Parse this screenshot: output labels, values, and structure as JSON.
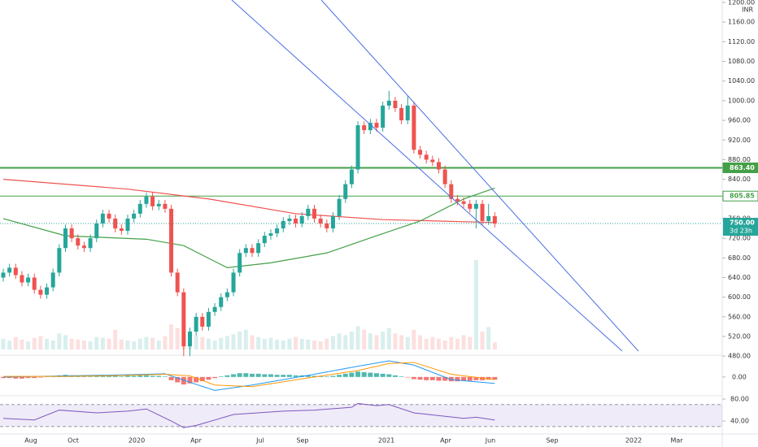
{
  "chart_data": {
    "type": "candlestick",
    "currency": "INR",
    "open": [
      640,
      650,
      660,
      645,
      630,
      640,
      615,
      605,
      620,
      650,
      700,
      740,
      720,
      705,
      700,
      720,
      750,
      770,
      760,
      740,
      735,
      760,
      770,
      790,
      805,
      785,
      790,
      780,
      650,
      610,
      500,
      530,
      560,
      540,
      570,
      580,
      600,
      610,
      650,
      690,
      700,
      690,
      710,
      725,
      730,
      740,
      755,
      760,
      750,
      765,
      780,
      760,
      750,
      740,
      765,
      800,
      830,
      860,
      950,
      940,
      955,
      945,
      990,
      1000,
      985,
      960,
      990,
      900,
      890,
      880,
      875,
      860,
      830,
      800,
      795,
      790,
      780,
      790,
      755,
      765
    ],
    "high": [
      658,
      668,
      668,
      653,
      648,
      648,
      623,
      628,
      658,
      708,
      748,
      748,
      728,
      713,
      728,
      758,
      778,
      778,
      768,
      748,
      768,
      778,
      798,
      813,
      813,
      798,
      798,
      788,
      658,
      618,
      538,
      568,
      568,
      578,
      588,
      608,
      618,
      658,
      698,
      708,
      708,
      718,
      733,
      738,
      748,
      763,
      768,
      768,
      773,
      788,
      788,
      768,
      758,
      773,
      808,
      838,
      868,
      958,
      958,
      963,
      963,
      998,
      1020,
      1008,
      993,
      1010,
      998,
      908,
      898,
      888,
      883,
      868,
      838,
      808,
      803,
      798,
      798,
      798,
      790,
      773
    ],
    "low": [
      632,
      642,
      637,
      622,
      622,
      607,
      597,
      597,
      612,
      642,
      692,
      712,
      697,
      692,
      692,
      712,
      742,
      752,
      732,
      727,
      727,
      752,
      762,
      782,
      777,
      777,
      772,
      642,
      602,
      480,
      480,
      522,
      532,
      532,
      562,
      572,
      592,
      602,
      642,
      682,
      682,
      682,
      702,
      717,
      722,
      732,
      747,
      742,
      742,
      757,
      752,
      742,
      732,
      732,
      757,
      792,
      822,
      852,
      932,
      932,
      937,
      937,
      982,
      977,
      952,
      952,
      892,
      882,
      872,
      867,
      852,
      822,
      792,
      787,
      782,
      772,
      740,
      747,
      747,
      742
    ],
    "close": [
      650,
      660,
      645,
      630,
      640,
      615,
      605,
      620,
      650,
      700,
      740,
      720,
      705,
      700,
      720,
      750,
      770,
      760,
      740,
      735,
      760,
      770,
      790,
      805,
      785,
      790,
      780,
      650,
      610,
      500,
      530,
      560,
      540,
      570,
      580,
      600,
      610,
      650,
      690,
      700,
      690,
      710,
      725,
      730,
      740,
      755,
      760,
      750,
      765,
      780,
      760,
      750,
      740,
      765,
      800,
      830,
      860,
      950,
      940,
      955,
      945,
      990,
      1000,
      985,
      960,
      990,
      900,
      890,
      880,
      875,
      860,
      830,
      800,
      795,
      790,
      780,
      790,
      755,
      765,
      750
    ],
    "volume": [
      12,
      10,
      14,
      11,
      9,
      13,
      15,
      12,
      10,
      18,
      16,
      12,
      11,
      10,
      9,
      14,
      13,
      12,
      22,
      11,
      10,
      9,
      12,
      14,
      13,
      10,
      15,
      28,
      24,
      20,
      18,
      16,
      14,
      12,
      10,
      13,
      15,
      17,
      20,
      22,
      16,
      14,
      12,
      13,
      11,
      10,
      12,
      14,
      12,
      11,
      10,
      9,
      12,
      15,
      18,
      16,
      20,
      26,
      22,
      18,
      16,
      20,
      24,
      18,
      16,
      14,
      22,
      16,
      12,
      14,
      12,
      10,
      14,
      12,
      16,
      14,
      100,
      20,
      25,
      8
    ],
    "ylim": [
      477,
      1205
    ],
    "yticks": [
      {
        "value": 1200,
        "label": "1200.00"
      },
      {
        "value": 1160,
        "label": "1160.00"
      },
      {
        "value": 1120,
        "label": "1120.00"
      },
      {
        "value": 1080,
        "label": "1080.00"
      },
      {
        "value": 1040,
        "label": "1040.00"
      },
      {
        "value": 1000,
        "label": "1000.00"
      },
      {
        "value": 960,
        "label": "960.00"
      },
      {
        "value": 920,
        "label": "920.00"
      },
      {
        "value": 880,
        "label": "880.00"
      },
      {
        "value": 840,
        "label": "840.00"
      },
      {
        "value": 800,
        "label": "800.00"
      },
      {
        "value": 760,
        "label": "760.00"
      },
      {
        "value": 720,
        "label": "720.00"
      },
      {
        "value": 680,
        "label": "680.00"
      },
      {
        "value": 640,
        "label": "640.00"
      },
      {
        "value": 600,
        "label": "600.00"
      },
      {
        "value": 560,
        "label": "560.00"
      },
      {
        "value": 520,
        "label": "520.00"
      },
      {
        "value": 480,
        "label": "480.00"
      }
    ],
    "xaxis_labels": [
      "Aug",
      "Oct",
      "2020",
      "Apr",
      "Jul",
      "Sep",
      "2021",
      "Apr",
      "Jun",
      "Sep",
      "2022",
      "Mar"
    ],
    "ma_slow": {
      "color": "#ef5350",
      "x": [
        0,
        20,
        33,
        47,
        61,
        79
      ],
      "values": [
        840,
        820,
        800,
        770,
        758,
        752
      ]
    },
    "ma_fast": {
      "color": "#43a047",
      "x": [
        0,
        10,
        23,
        29,
        36,
        43,
        52,
        60,
        67,
        74,
        79
      ],
      "values": [
        760,
        725,
        718,
        705,
        660,
        670,
        690,
        725,
        755,
        800,
        822
      ]
    },
    "levels": [
      {
        "value": 863.4,
        "label": "863.40",
        "color": "#43a047"
      },
      {
        "value": 805.85,
        "label": "805.85",
        "color": "#43a047"
      }
    ],
    "last_price": {
      "value": 750,
      "label": "750.00",
      "countdown": "3d 23h"
    },
    "macd": {
      "ylim": [
        -32,
        36
      ],
      "yticks": [
        {
          "value": 0,
          "label": "0.00"
        }
      ],
      "hist": [
        -2,
        -2,
        -3,
        -3,
        -2,
        -2,
        -1,
        1,
        2,
        3,
        4,
        3,
        2,
        1,
        1,
        2,
        3,
        3,
        2,
        1,
        2,
        2,
        3,
        3,
        2,
        2,
        1,
        -6,
        -10,
        -14,
        -12,
        -10,
        -8,
        -5,
        -2,
        1,
        3,
        5,
        7,
        7,
        6,
        6,
        5,
        5,
        4,
        4,
        4,
        3,
        3,
        3,
        2,
        2,
        1,
        2,
        4,
        6,
        8,
        10,
        9,
        8,
        7,
        6,
        5,
        3,
        1,
        -1,
        -4,
        -5,
        -6,
        -6,
        -7,
        -7,
        -8,
        -8,
        -7,
        -7,
        -6,
        -6,
        -5,
        -5
      ],
      "x": [
        0,
        10,
        20,
        26,
        30,
        34,
        40,
        50,
        57,
        62,
        66,
        72,
        79
      ],
      "macd_line": [
        0,
        2,
        4,
        6,
        -10,
        -25,
        -15,
        5,
        20,
        30,
        22,
        -5,
        -12
      ],
      "signal_line": [
        1,
        1,
        3,
        5,
        2,
        -15,
        -18,
        0,
        12,
        25,
        27,
        5,
        -5
      ]
    },
    "rsi": {
      "ylim": [
        18,
        83
      ],
      "band": [
        30,
        70
      ],
      "yticks": [
        {
          "value": 80,
          "label": "80.00"
        },
        {
          "value": 40,
          "label": "40.00"
        }
      ],
      "x": [
        0,
        5,
        9,
        15,
        20,
        23,
        27,
        29,
        31,
        37,
        45,
        50,
        56,
        57,
        60,
        62,
        66,
        70,
        74,
        76,
        79
      ],
      "values": [
        45,
        42,
        60,
        55,
        58,
        62,
        40,
        28,
        32,
        52,
        58,
        60,
        65,
        72,
        68,
        70,
        55,
        50,
        45,
        47,
        42
      ]
    }
  }
}
